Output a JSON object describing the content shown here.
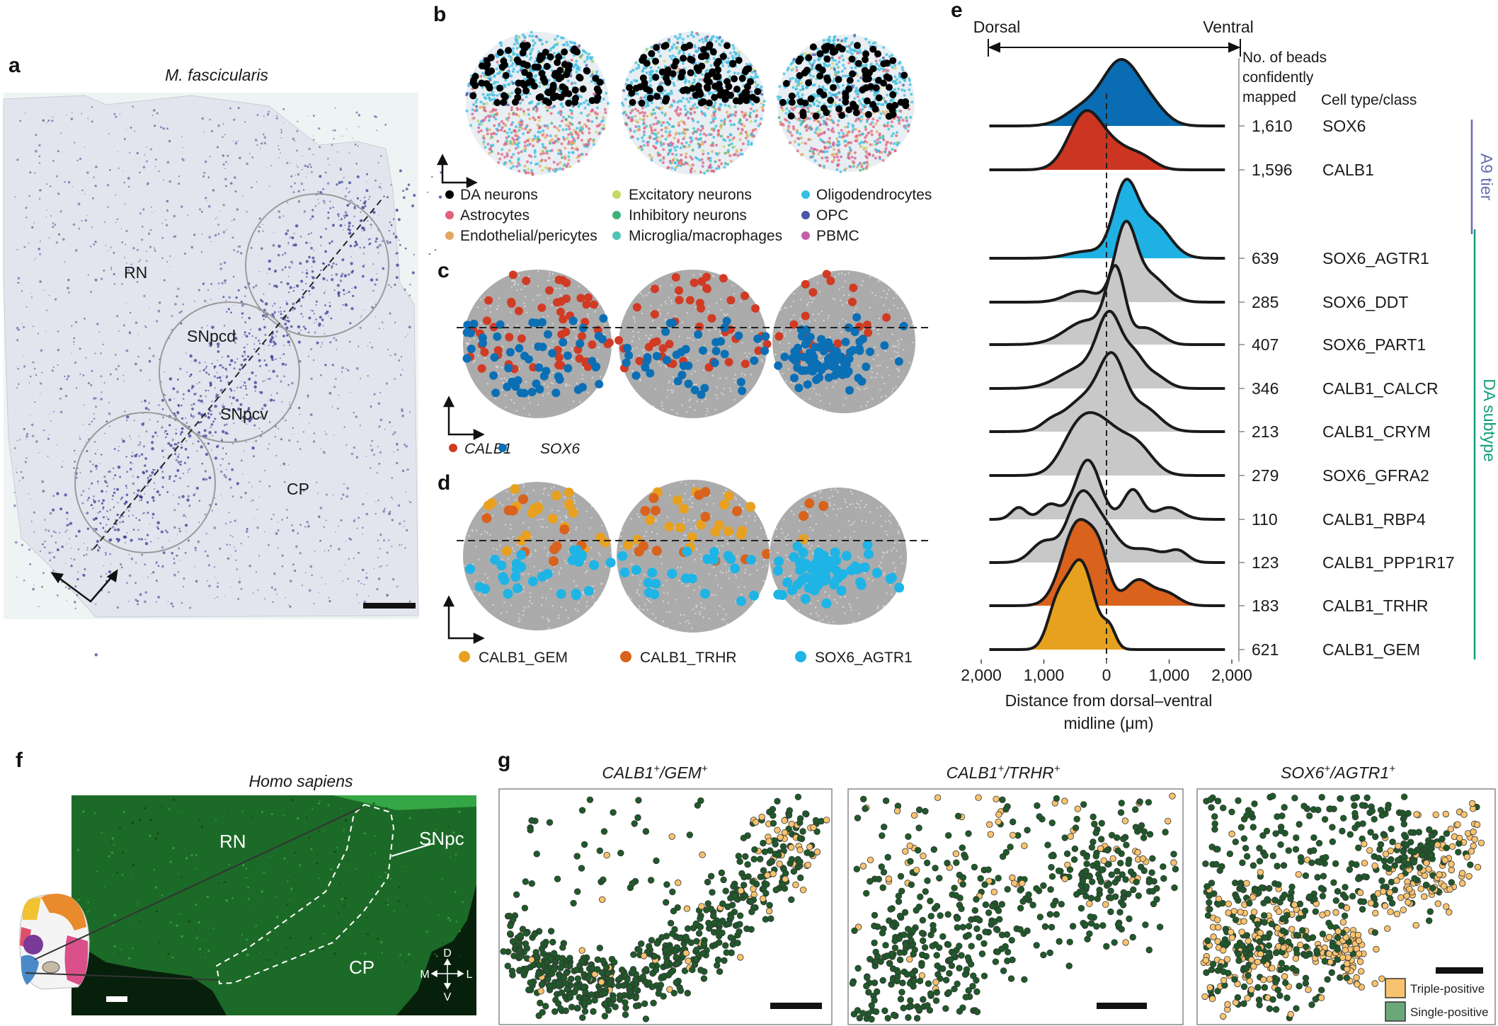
{
  "panel_labels": {
    "a": "a",
    "b": "b",
    "c": "c",
    "d": "d",
    "e": "e",
    "f": "f",
    "g": "g"
  },
  "panel_a": {
    "title": "M. fascicularis",
    "regions": {
      "rn": "RN",
      "snpcd": "SNpcd",
      "snpcv": "SNpcv",
      "cp": "CP"
    }
  },
  "panel_b": {
    "legend": [
      {
        "label": "DA neurons",
        "color": "#000000"
      },
      {
        "label": "Astrocytes",
        "color": "#e0607a"
      },
      {
        "label": "Endothelial/pericytes",
        "color": "#e0a860"
      },
      {
        "label": "Excitatory neurons",
        "color": "#c8d862"
      },
      {
        "label": "Inhibitory neurons",
        "color": "#3fb27a"
      },
      {
        "label": "Microglia/macrophages",
        "color": "#4fc4b4"
      },
      {
        "label": "Oligodendrocytes",
        "color": "#36bde4"
      },
      {
        "label": "OPC",
        "color": "#4a55a8"
      },
      {
        "label": "PBMC",
        "color": "#c65ea8"
      }
    ]
  },
  "panel_c": {
    "legend": [
      {
        "label": "CALB1",
        "color": "#d13b24"
      },
      {
        "label": "SOX6",
        "color": "#0b6fb5"
      }
    ]
  },
  "panel_d": {
    "legend": [
      {
        "label": "CALB1_GEM",
        "color": "#e8a020"
      },
      {
        "label": "CALB1_TRHR",
        "color": "#d9621c"
      },
      {
        "label": "SOX6_AGTR1",
        "color": "#1fb4e6"
      }
    ]
  },
  "chart_data": {
    "type": "ridgeline",
    "direction_left": "Dorsal",
    "direction_right": "Ventral",
    "col_header_count": [
      "No. of beads",
      "confidently",
      "mapped"
    ],
    "col_header_name": "Cell type/class",
    "xlabel_lines": [
      "Distance from dorsal–ventral",
      "midline (μm)"
    ],
    "xticks": [
      "2,000",
      "1,000",
      "0",
      "1,000",
      "2,000"
    ],
    "xtick_values": [
      -2000,
      -1000,
      0,
      1000,
      2000
    ],
    "xlim": [
      -2000,
      2000
    ],
    "reference_line": 0,
    "groups": [
      {
        "label": "A9 tier",
        "color": "#6b6bb0",
        "members": [
          "SOX6",
          "CALB1"
        ]
      },
      {
        "label": "DA subtype",
        "color": "#12a07a",
        "members": [
          "SOX6_AGTR1",
          "SOX6_DDT",
          "SOX6_PART1",
          "CALB1_CALCR",
          "CALB1_CRYM",
          "SOX6_GFRA2",
          "CALB1_RBP4",
          "CALB1_PPP1R17",
          "CALB1_TRHR",
          "CALB1_GEM"
        ]
      }
    ],
    "series": [
      {
        "name": "SOX6",
        "count": "1,610",
        "color": "#0a6db3",
        "relative_height": 0.74,
        "density_components": [
          [
            230,
            280,
            1
          ],
          [
            -350,
            300,
            0.3
          ],
          [
            700,
            250,
            0.3
          ]
        ]
      },
      {
        "name": "CALB1",
        "count": "1,596",
        "color": "#cc3522",
        "relative_height": 0.66,
        "density_components": [
          [
            -350,
            260,
            1
          ],
          [
            150,
            300,
            0.4
          ],
          [
            600,
            200,
            0.15
          ]
        ]
      },
      {
        "name": "SOX6_AGTR1",
        "count": "639",
        "color": "#1fb1e3",
        "relative_height": 0.88,
        "density_components": [
          [
            300,
            190,
            1
          ],
          [
            750,
            260,
            0.5
          ],
          [
            -300,
            300,
            0.1
          ]
        ]
      },
      {
        "name": "SOX6_DDT",
        "count": "285",
        "color": "#c8c8c8",
        "relative_height": 0.9,
        "density_components": [
          [
            300,
            170,
            1
          ],
          [
            700,
            250,
            0.35
          ],
          [
            -400,
            250,
            0.15
          ]
        ]
      },
      {
        "name": "SOX6_PART1",
        "count": "407",
        "color": "#c8c8c8",
        "relative_height": 0.88,
        "density_components": [
          [
            150,
            150,
            1
          ],
          [
            -300,
            350,
            0.35
          ],
          [
            600,
            150,
            0.2
          ],
          [
            850,
            150,
            0.1
          ]
        ]
      },
      {
        "name": "CALB1_CALCR",
        "count": "346",
        "color": "#c8c8c8",
        "relative_height": 0.86,
        "density_components": [
          [
            60,
            200,
            1
          ],
          [
            -400,
            350,
            0.3
          ],
          [
            450,
            150,
            0.35
          ],
          [
            750,
            200,
            0.2
          ]
        ]
      },
      {
        "name": "CALB1_CRYM",
        "count": "213",
        "color": "#c8c8c8",
        "relative_height": 0.88,
        "density_components": [
          [
            100,
            200,
            1
          ],
          [
            -300,
            350,
            0.6
          ],
          [
            600,
            250,
            0.4
          ],
          [
            -900,
            150,
            0.1
          ]
        ]
      },
      {
        "name": "SOX6_GFRA2",
        "count": "279",
        "color": "#c8c8c8",
        "relative_height": 0.7,
        "density_components": [
          [
            -100,
            330,
            0.9
          ],
          [
            -500,
            250,
            0.5
          ],
          [
            500,
            250,
            0.45
          ]
        ]
      },
      {
        "name": "CALB1_RBP4",
        "count": "110",
        "color": "#c8c8c8",
        "relative_height": 0.66,
        "density_components": [
          [
            -300,
            200,
            1
          ],
          [
            420,
            150,
            0.5
          ],
          [
            -900,
            150,
            0.25
          ],
          [
            -1400,
            120,
            0.2
          ],
          [
            1000,
            200,
            0.2
          ]
        ]
      },
      {
        "name": "CALB1_PPP1R17",
        "count": "123",
        "color": "#c8c8c8",
        "relative_height": 0.8,
        "density_components": [
          [
            -400,
            220,
            1
          ],
          [
            0,
            200,
            0.4
          ],
          [
            -1000,
            200,
            0.3
          ],
          [
            1150,
            150,
            0.15
          ],
          [
            600,
            300,
            0.2
          ]
        ]
      },
      {
        "name": "CALB1_TRHR",
        "count": "183",
        "color": "#d9621c",
        "relative_height": 0.96,
        "density_components": [
          [
            -450,
            250,
            1
          ],
          [
            -100,
            150,
            0.4
          ],
          [
            500,
            200,
            0.3
          ],
          [
            950,
            200,
            0.15
          ]
        ]
      },
      {
        "name": "CALB1_GEM",
        "count": "621",
        "color": "#e6a21f",
        "relative_height": 1.0,
        "density_components": [
          [
            -420,
            220,
            1
          ],
          [
            -800,
            150,
            0.4
          ],
          [
            50,
            100,
            0.2
          ]
        ]
      }
    ]
  },
  "panel_f": {
    "title": "Homo sapiens",
    "regions": {
      "rn": "RN",
      "snpc": "SNpc",
      "cp": "CP"
    },
    "compass": {
      "d": "D",
      "v": "V",
      "m": "M",
      "l": "L"
    }
  },
  "panel_g": {
    "titles": [
      {
        "g1": "CALB1",
        "sup1": "+",
        "g2": "/GEM",
        "sup2": "+"
      },
      {
        "g1": "CALB1",
        "sup1": "+",
        "g2": "/TRHR",
        "sup2": "+"
      },
      {
        "g1": "SOX6",
        "sup1": "+",
        "g2": "/AGTR1",
        "sup2": "+"
      }
    ],
    "legend": [
      {
        "label": "Triple-positive",
        "color": "#f8c36e"
      },
      {
        "label": "Single-positive",
        "color": "#1f5a2a"
      }
    ]
  }
}
